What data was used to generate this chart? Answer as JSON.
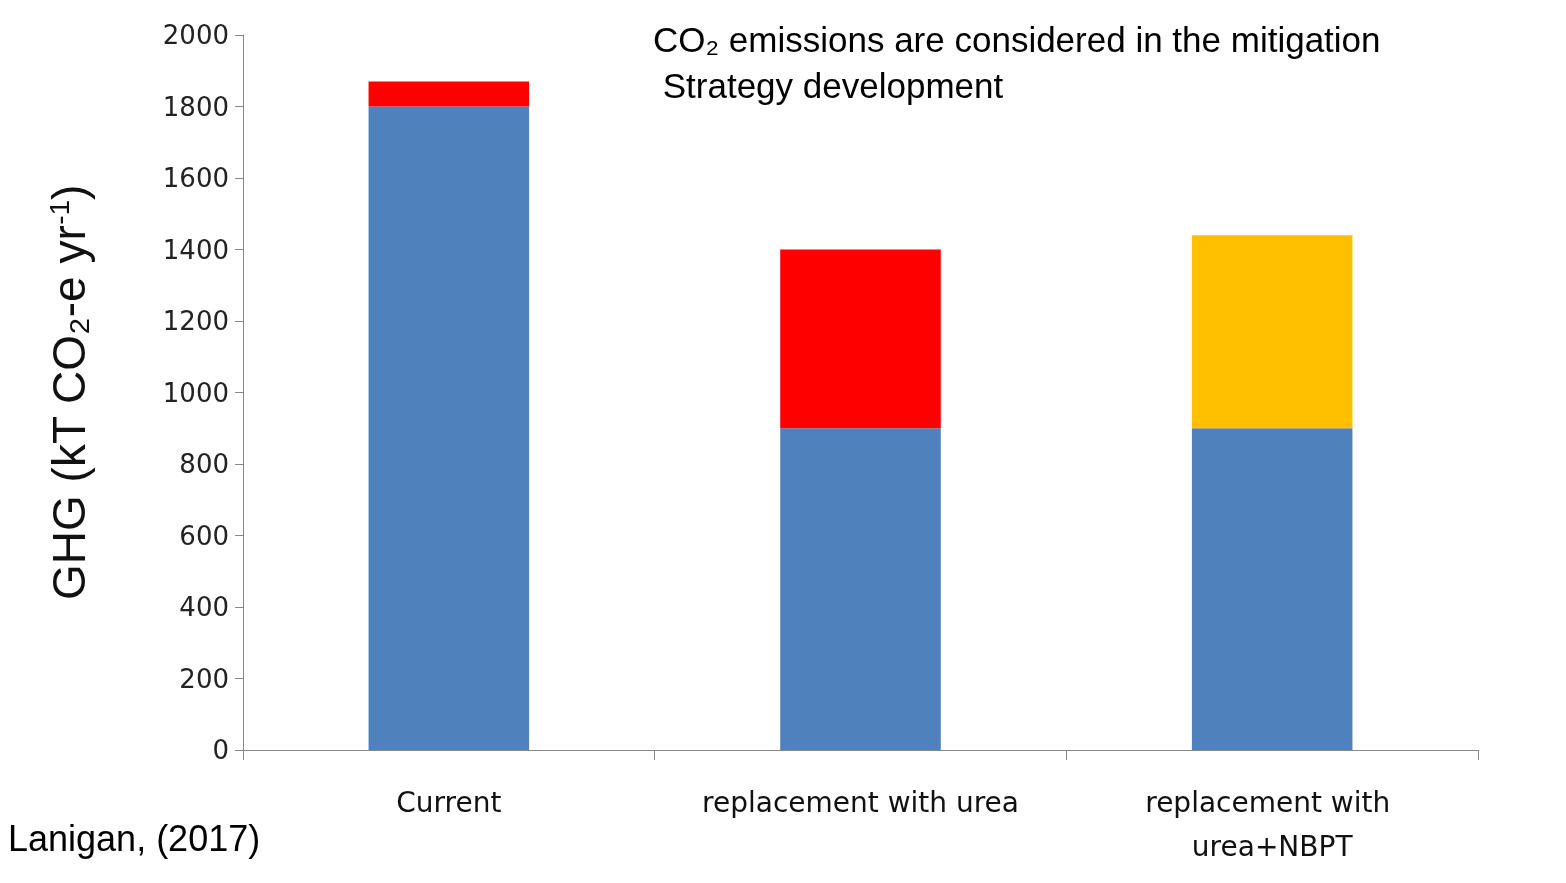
{
  "chart_data": {
    "type": "bar",
    "stacked": true,
    "ylabel": "GHG (kT CO₂-e yr$^{-1}$)",
    "categories": [
      "Current",
      "replacement with urea",
      "replacement with urea+NBPT"
    ],
    "series": [
      {
        "color": "#4f81bd",
        "values": [
          1800,
          900,
          900
        ]
      },
      {
        "color": "#ff0000",
        "values": [
          70,
          500,
          null
        ]
      },
      {
        "color": "#ffc000",
        "values": [
          null,
          null,
          540
        ]
      }
    ],
    "ylim": [
      0,
      2000
    ],
    "yticks": [
      0,
      200,
      400,
      600,
      800,
      1000,
      1200,
      1400,
      1600,
      1800,
      2000
    ],
    "grid": false,
    "annotations": [
      "CO₂ emissions are considered in the mitigation Strategy development",
      "Lanigan, (2017)"
    ]
  }
}
